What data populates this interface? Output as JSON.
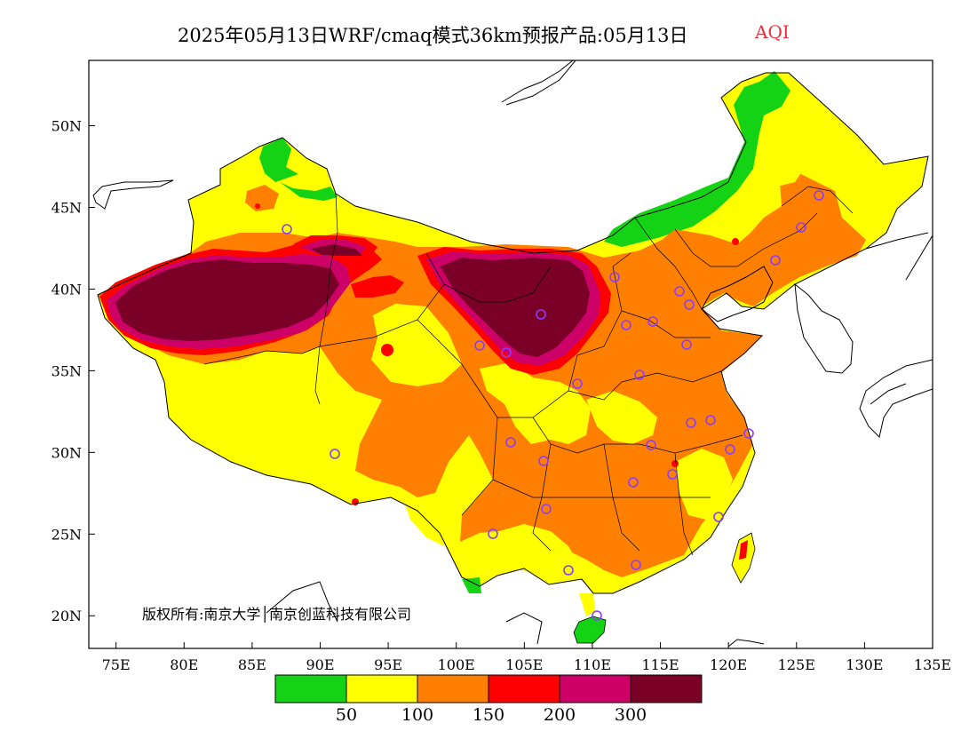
{
  "title": {
    "main": "2025年05月13日WRF/cmaq模式36km预报产品:05月13日",
    "variable": "AQI",
    "variable_color": "#e8323c"
  },
  "map": {
    "lon_range": [
      73,
      135
    ],
    "lat_range": [
      18,
      54
    ],
    "lat_ticks": [
      {
        "value": 20,
        "label": "20N"
      },
      {
        "value": 25,
        "label": "25N"
      },
      {
        "value": 30,
        "label": "30N"
      },
      {
        "value": 35,
        "label": "35N"
      },
      {
        "value": 40,
        "label": "40N"
      },
      {
        "value": 45,
        "label": "45N"
      },
      {
        "value": 50,
        "label": "50N"
      }
    ],
    "lon_ticks": [
      {
        "value": 75,
        "label": "75E"
      },
      {
        "value": 80,
        "label": "80E"
      },
      {
        "value": 85,
        "label": "85E"
      },
      {
        "value": 90,
        "label": "90E"
      },
      {
        "value": 95,
        "label": "95E"
      },
      {
        "value": 100,
        "label": "100E"
      },
      {
        "value": 105,
        "label": "105E"
      },
      {
        "value": 110,
        "label": "110E"
      },
      {
        "value": 115,
        "label": "115E"
      },
      {
        "value": 120,
        "label": "120E"
      },
      {
        "value": 125,
        "label": "125E"
      },
      {
        "value": 130,
        "label": "130E"
      },
      {
        "value": 135,
        "label": "135E"
      }
    ],
    "copyright": "版权所有:南京大学│南京创蓝科技有限公司"
  },
  "legend": {
    "colors": [
      "#14d214",
      "#ffff00",
      "#ff8000",
      "#ff0000",
      "#cc0066",
      "#7a0028"
    ],
    "labels": [
      "50",
      "100",
      "150",
      "200",
      "300"
    ],
    "icon": "legend-colorbar"
  },
  "aqi_colors": {
    "good": "#14d214",
    "moderate": "#ffff00",
    "usg": "#ff8000",
    "unhealthy": "#ff0000",
    "very_unhealthy": "#cc0066",
    "hazardous": "#7a0028"
  },
  "city_marker_color": "#8a3cff"
}
